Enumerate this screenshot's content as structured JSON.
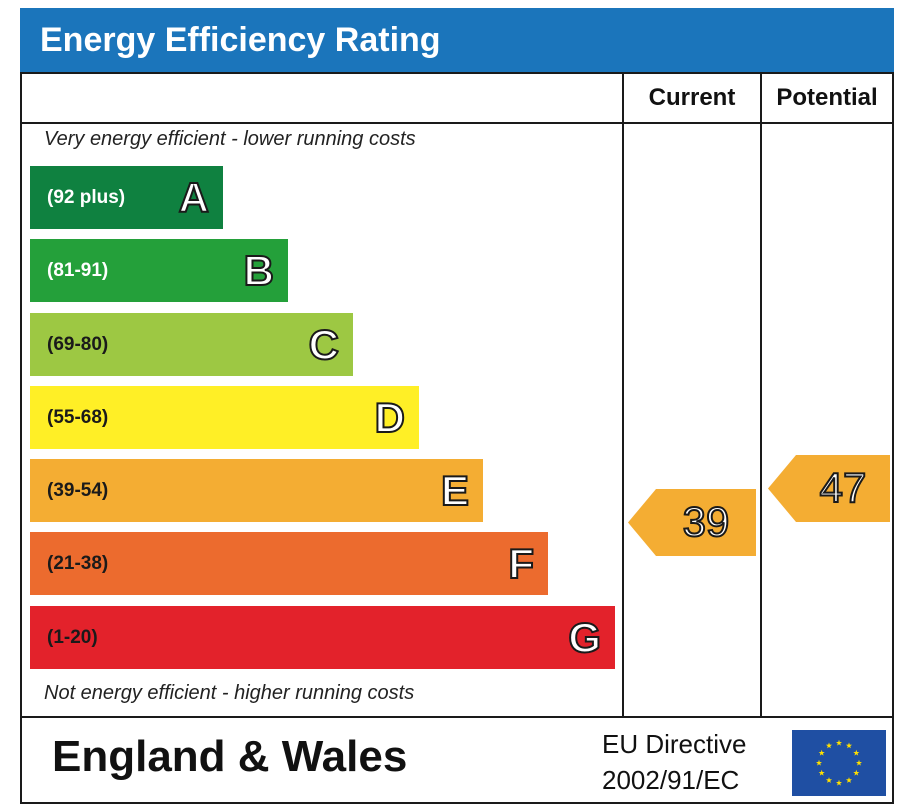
{
  "title": "Energy Efficiency Rating",
  "columns": {
    "current": "Current",
    "potential": "Potential"
  },
  "notes": {
    "top": "Very energy efficient - lower running costs",
    "bottom": "Not energy efficient - higher running costs"
  },
  "footer": {
    "region": "England & Wales",
    "directive_line1": "EU Directive",
    "directive_line2": "2002/91/EC",
    "flag_icon": "eu-flag-icon"
  },
  "chart_data": {
    "type": "bar",
    "categories": [
      "A",
      "B",
      "C",
      "D",
      "E",
      "F",
      "G"
    ],
    "ranges": [
      "(92 plus)",
      "(81-91)",
      "(69-80)",
      "(55-68)",
      "(39-54)",
      "(21-38)",
      "(1-20)"
    ],
    "colors": [
      "#0f8140",
      "#24a03a",
      "#9dc843",
      "#ffef26",
      "#f4ad33",
      "#ec6b2e",
      "#e3222b"
    ],
    "current": {
      "value": 39,
      "band": "E",
      "color": "#f4ad33"
    },
    "potential": {
      "value": 47,
      "band": "E",
      "color": "#f4ad33"
    }
  }
}
